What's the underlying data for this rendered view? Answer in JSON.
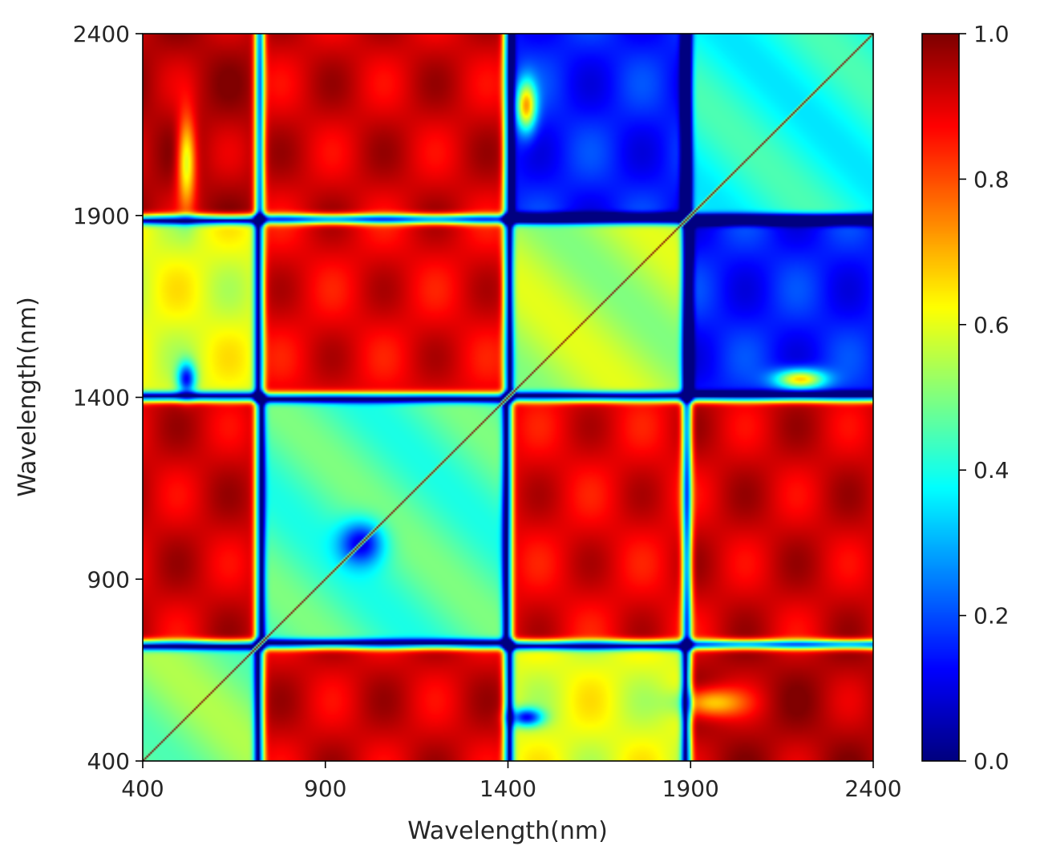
{
  "chart_data": {
    "type": "heatmap",
    "title": "",
    "xlabel": "Wavelength(nm)",
    "ylabel": "Wavelength(nm)",
    "xlim": [
      400,
      2400
    ],
    "ylim": [
      400,
      2400
    ],
    "xticks": [
      "400",
      "900",
      "1400",
      "1900",
      "2400"
    ],
    "yticks": [
      "400",
      "900",
      "1400",
      "1900",
      "2400"
    ],
    "colormap": "jet",
    "colorbar": {
      "range": [
        0.0,
        1.0
      ],
      "ticks": [
        "0.0",
        "0.2",
        "0.4",
        "0.6",
        "0.8",
        "1.0"
      ]
    },
    "symmetric": true,
    "diagonal_value": 1.0,
    "band_edges_nm": [
      400,
      720,
      1400,
      1890,
      2400
    ],
    "block_values": [
      [
        0.5,
        0.92,
        0.6,
        0.95
      ],
      [
        0.92,
        0.45,
        0.9,
        0.92
      ],
      [
        0.6,
        0.9,
        0.55,
        0.15
      ],
      [
        0.95,
        0.92,
        0.15,
        0.4
      ]
    ]
  }
}
